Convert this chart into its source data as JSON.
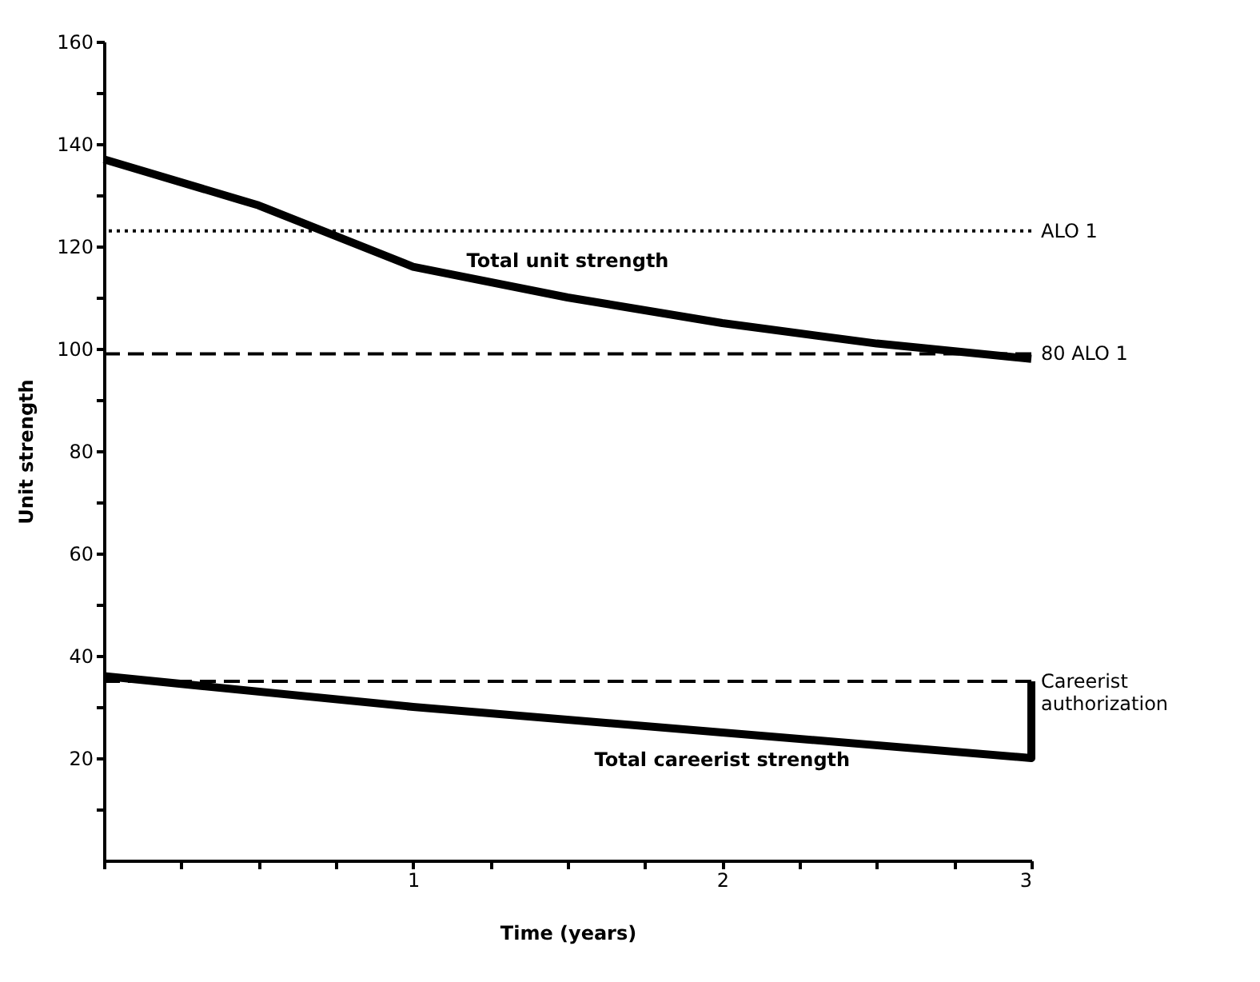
{
  "chart_data": {
    "type": "line",
    "xlabel": "Time (years)",
    "ylabel": "Unit strength",
    "xlim": [
      0,
      3
    ],
    "ylim": [
      0,
      160
    ],
    "xticks": [
      {
        "value": 0,
        "label": null
      },
      {
        "value": 0.25,
        "label": null
      },
      {
        "value": 0.5,
        "label": null
      },
      {
        "value": 0.75,
        "label": null
      },
      1,
      {
        "value": 1.25,
        "label": null
      },
      {
        "value": 1.5,
        "label": null
      },
      {
        "value": 1.75,
        "label": null
      },
      2,
      {
        "value": 2.25,
        "label": null
      },
      {
        "value": 2.5,
        "label": null
      },
      {
        "value": 2.75,
        "label": null
      },
      3
    ],
    "yticks": [
      {
        "value": 10,
        "label": null
      },
      20,
      {
        "value": 30,
        "label": null
      },
      40,
      {
        "value": 50,
        "label": null
      },
      60,
      {
        "value": 70,
        "label": null
      },
      80,
      {
        "value": 90,
        "label": null
      },
      100,
      {
        "value": 110,
        "label": null
      },
      120,
      {
        "value": 130,
        "label": null
      },
      140,
      {
        "value": 150,
        "label": null
      },
      160
    ],
    "series": [
      {
        "name": "Total unit strength",
        "color": "#000000",
        "x": [
          0,
          0.5,
          1,
          1.5,
          2,
          2.5,
          3
        ],
        "values": [
          137,
          128,
          116,
          110,
          105,
          101,
          98
        ]
      },
      {
        "name": "Total careerist strength",
        "color": "#000000",
        "x": [
          0,
          1,
          2,
          3,
          3
        ],
        "values": [
          36,
          30,
          25,
          20,
          35
        ]
      }
    ],
    "ref_lines": [
      {
        "axis": "y",
        "value": 123,
        "label": "ALO 1",
        "line_style": "dotted",
        "color": "#000000"
      },
      {
        "axis": "y",
        "value": 99,
        "label": "80 ALO 1",
        "line_style": "dashed",
        "color": "#000000"
      },
      {
        "axis": "y",
        "value": 35,
        "label": "Careerist authorization",
        "line_style": "dashed",
        "color": "#000000"
      }
    ],
    "grid": false,
    "marker": "none",
    "line_style": "solid"
  }
}
